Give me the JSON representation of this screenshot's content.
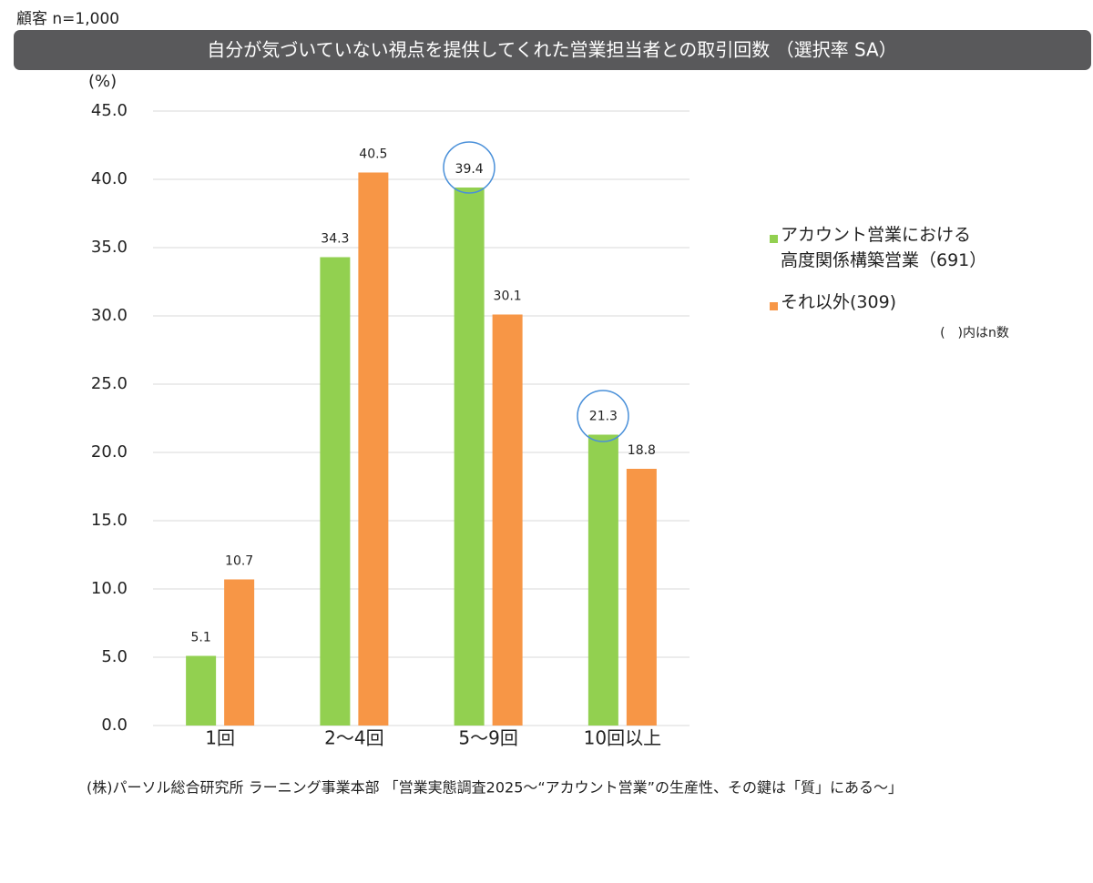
{
  "chart_data": {
    "type": "bar",
    "header": "顧客 n=1,000",
    "title": "自分が気づいていない視点を提供してくれた営業担当者との取引回数 （選択率 SA）",
    "y_unit": "(%)",
    "categories": [
      "1回",
      "2～4回",
      "5～9回",
      "10回以上"
    ],
    "series": [
      {
        "name": "アカウント営業における\n高度関係構築営業（691）",
        "color": "#92d050",
        "values": [
          5.1,
          34.3,
          39.4,
          21.3
        ]
      },
      {
        "name": "それ以外(309)",
        "color": "#f79646",
        "values": [
          10.7,
          40.5,
          30.1,
          18.8
        ]
      }
    ],
    "ylim": [
      0,
      45
    ],
    "yticks": [
      {
        "value": 0,
        "label": "0.0"
      },
      {
        "value": 5,
        "label": "5.0"
      },
      {
        "value": 10,
        "label": "10.0"
      },
      {
        "value": 15,
        "label": "15.0"
      },
      {
        "value": 20,
        "label": "20.0"
      },
      {
        "value": 25,
        "label": "25.0"
      },
      {
        "value": 30,
        "label": "30.0"
      },
      {
        "value": 35,
        "label": "35.0"
      },
      {
        "value": 40,
        "label": "40.0"
      },
      {
        "value": 45,
        "label": "45.0"
      }
    ],
    "grid": true,
    "legend_note": "(　)内はn数",
    "source": "(株)パーソル総合研究所 ラーニング事業本部 「営業実態調査2025～“アカウント営業”の生産性、その鍵は「質」にある～」"
  }
}
